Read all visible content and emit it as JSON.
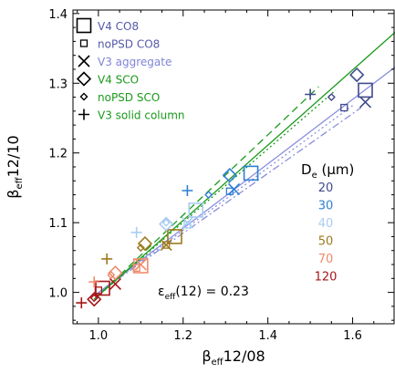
{
  "chart_data": {
    "type": "scatter",
    "xlabel": "βeff12/08",
    "xlabel_parts": {
      "beta": "β",
      "sub": "eff",
      "rest": "12/08"
    },
    "ylabel": "βeff12/10",
    "ylabel_parts": {
      "beta": "β",
      "sub": "eff",
      "rest": "12/10"
    },
    "xlim": [
      0.94,
      1.7
    ],
    "ylim": [
      0.955,
      1.405
    ],
    "x_ticks": [
      1.0,
      1.2,
      1.4,
      1.6
    ],
    "x_tick_labels": [
      "1.0",
      "1.2",
      "1.4",
      "1.6"
    ],
    "y_ticks": [
      1.0,
      1.1,
      1.2,
      1.3,
      1.4
    ],
    "y_tick_labels": [
      "1.0",
      "1.1",
      "1.2",
      "1.3",
      "1.4"
    ],
    "annotation": {
      "eps": "ε",
      "sub": "eff",
      "rest": "(12) = 0.23"
    },
    "legend": [
      {
        "label": "V4 CO8",
        "marker": "square-large",
        "color": "#545aa8"
      },
      {
        "label": "noPSD CO8",
        "marker": "square-small",
        "color": "#545aa8"
      },
      {
        "label": "V3 aggregate",
        "marker": "x",
        "color": "#7f84d6"
      },
      {
        "label": "V4 SCO",
        "marker": "diamond-large",
        "color": "#1a9a1a"
      },
      {
        "label": "noPSD SCO",
        "marker": "diamond-small",
        "color": "#1a9a1a"
      },
      {
        "label": "V3 solid column",
        "marker": "plus",
        "color": "#1a9a1a"
      }
    ],
    "size_legend": {
      "title_main": "D",
      "title_sub": "e",
      "title_unit": " (μm)",
      "sizes": [
        {
          "label": "20",
          "color": "#3f4a8c"
        },
        {
          "label": "30",
          "color": "#2f7fd4"
        },
        {
          "label": "40",
          "color": "#a9cdf2"
        },
        {
          "label": "50",
          "color": "#9e7a1e"
        },
        {
          "label": "70",
          "color": "#f08a6a"
        },
        {
          "label": "120",
          "color": "#a5161a"
        }
      ]
    },
    "lines": [
      {
        "name": "V4 CO8",
        "style": "solid",
        "color": "#8a8fdc",
        "x1": 0.99,
        "y1": 0.995,
        "x2": 1.7,
        "y2": 1.323
      },
      {
        "name": "noPSD CO8",
        "style": "dotted",
        "color": "#8a8fdc",
        "x1": 0.99,
        "y1": 0.995,
        "x2": 1.6,
        "y2": 1.268
      },
      {
        "name": "V3 aggregate",
        "style": "dashdot",
        "color": "#8a8fdc",
        "x1": 0.99,
        "y1": 0.995,
        "x2": 1.62,
        "y2": 1.265
      },
      {
        "name": "V4 SCO",
        "style": "solid",
        "color": "#1a9a1a",
        "x1": 0.99,
        "y1": 0.99,
        "x2": 1.7,
        "y2": 1.373
      },
      {
        "name": "noPSD SCO",
        "style": "dotted",
        "color": "#1a9a1a",
        "x1": 0.99,
        "y1": 0.99,
        "x2": 1.56,
        "y2": 1.29
      },
      {
        "name": "V3 solid column",
        "style": "dashed",
        "color": "#1a9a1a",
        "x1": 0.99,
        "y1": 0.99,
        "x2": 1.52,
        "y2": 1.295
      }
    ],
    "points": [
      {
        "series": "V4 CO8",
        "marker": "square-large",
        "size": "120",
        "x": 1.01,
        "y": 1.006
      },
      {
        "series": "V4 CO8",
        "marker": "square-large",
        "size": "70",
        "x": 1.1,
        "y": 1.038
      },
      {
        "series": "V4 CO8",
        "marker": "square-large",
        "size": "50",
        "x": 1.18,
        "y": 1.08
      },
      {
        "series": "V4 CO8",
        "marker": "square-large",
        "size": "40",
        "x": 1.23,
        "y": 1.118
      },
      {
        "series": "V4 CO8",
        "marker": "square-large",
        "size": "30",
        "x": 1.36,
        "y": 1.171
      },
      {
        "series": "V4 CO8",
        "marker": "square-large",
        "size": "20",
        "x": 1.63,
        "y": 1.29
      },
      {
        "series": "noPSD CO8",
        "marker": "square-small",
        "size": "120",
        "x": 1.0,
        "y": 1.003
      },
      {
        "series": "noPSD CO8",
        "marker": "square-small",
        "size": "70",
        "x": 1.09,
        "y": 1.035
      },
      {
        "series": "noPSD CO8",
        "marker": "square-small",
        "size": "50",
        "x": 1.16,
        "y": 1.068
      },
      {
        "series": "noPSD CO8",
        "marker": "square-small",
        "size": "40",
        "x": 1.21,
        "y": 1.097
      },
      {
        "series": "noPSD CO8",
        "marker": "square-small",
        "size": "30",
        "x": 1.31,
        "y": 1.145
      },
      {
        "series": "noPSD CO8",
        "marker": "square-small",
        "size": "20",
        "x": 1.58,
        "y": 1.265
      },
      {
        "series": "V3 aggregate",
        "marker": "x",
        "size": "120",
        "x": 1.04,
        "y": 1.012
      },
      {
        "series": "V3 aggregate",
        "marker": "x",
        "size": "70",
        "x": 1.1,
        "y": 1.04
      },
      {
        "series": "V3 aggregate",
        "marker": "x",
        "size": "50",
        "x": 1.16,
        "y": 1.068
      },
      {
        "series": "V3 aggregate",
        "marker": "x",
        "size": "40",
        "x": 1.21,
        "y": 1.1
      },
      {
        "series": "V3 aggregate",
        "marker": "x",
        "size": "30",
        "x": 1.32,
        "y": 1.148
      },
      {
        "series": "V3 aggregate",
        "marker": "x",
        "size": "20",
        "x": 1.63,
        "y": 1.273
      },
      {
        "series": "V4 SCO",
        "marker": "diamond-large",
        "size": "120",
        "x": 0.99,
        "y": 0.99
      },
      {
        "series": "V4 SCO",
        "marker": "diamond-large",
        "size": "70",
        "x": 1.04,
        "y": 1.028
      },
      {
        "series": "V4 SCO",
        "marker": "diamond-large",
        "size": "50",
        "x": 1.11,
        "y": 1.07
      },
      {
        "series": "V4 SCO",
        "marker": "diamond-large",
        "size": "40",
        "x": 1.16,
        "y": 1.098
      },
      {
        "series": "V4 SCO",
        "marker": "diamond-large",
        "size": "30",
        "x": 1.31,
        "y": 1.168
      },
      {
        "series": "V4 SCO",
        "marker": "diamond-large",
        "size": "20",
        "x": 1.61,
        "y": 1.312
      },
      {
        "series": "noPSD SCO",
        "marker": "diamond-small",
        "size": "120",
        "x": 0.99,
        "y": 0.992
      },
      {
        "series": "noPSD SCO",
        "marker": "diamond-small",
        "size": "70",
        "x": 1.03,
        "y": 1.025
      },
      {
        "series": "noPSD SCO",
        "marker": "diamond-small",
        "size": "50",
        "x": 1.1,
        "y": 1.064
      },
      {
        "series": "noPSD SCO",
        "marker": "diamond-small",
        "size": "40",
        "x": 1.16,
        "y": 1.1
      },
      {
        "series": "noPSD SCO",
        "marker": "diamond-small",
        "size": "30",
        "x": 1.26,
        "y": 1.14
      },
      {
        "series": "noPSD SCO",
        "marker": "diamond-small",
        "size": "20",
        "x": 1.55,
        "y": 1.28
      },
      {
        "series": "V3 solid column",
        "marker": "plus",
        "size": "120",
        "x": 0.96,
        "y": 0.985
      },
      {
        "series": "V3 solid column",
        "marker": "plus",
        "size": "70",
        "x": 0.99,
        "y": 1.015
      },
      {
        "series": "V3 solid column",
        "marker": "plus",
        "size": "50",
        "x": 1.02,
        "y": 1.048
      },
      {
        "series": "V3 solid column",
        "marker": "plus",
        "size": "40",
        "x": 1.09,
        "y": 1.086
      },
      {
        "series": "V3 solid column",
        "marker": "plus",
        "size": "30",
        "x": 1.21,
        "y": 1.146
      },
      {
        "series": "V3 solid column",
        "marker": "plus",
        "size": "20",
        "x": 1.5,
        "y": 1.284
      }
    ]
  }
}
